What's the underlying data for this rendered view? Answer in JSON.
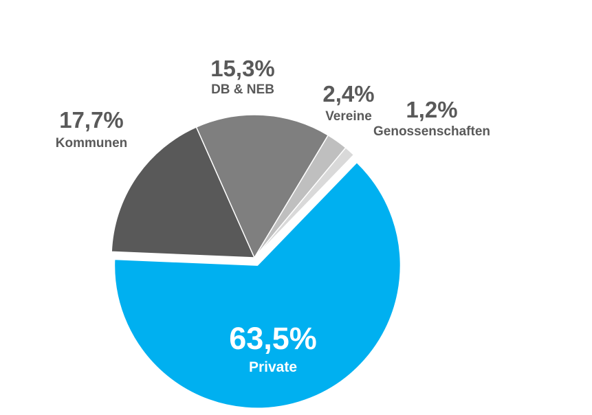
{
  "chart_data": {
    "type": "pie",
    "title": "",
    "slices": [
      {
        "label": "Private",
        "value": 63.5,
        "value_text": "63,5%",
        "color": "#00B0F0",
        "exploded": true
      },
      {
        "label": "Kommunen",
        "value": 17.7,
        "value_text": "17,7%",
        "color": "#595959",
        "exploded": false
      },
      {
        "label": "DB & NEB",
        "value": 15.3,
        "value_text": "15,3%",
        "color": "#7F7F7F",
        "exploded": false
      },
      {
        "label": "Vereine",
        "value": 2.4,
        "value_text": "2,4%",
        "color": "#BFBFBF",
        "exploded": false
      },
      {
        "label": "Genossenschaften",
        "value": 1.2,
        "value_text": "1,2%",
        "color": "#D9D9D9",
        "exploded": false
      }
    ],
    "legend": "none",
    "label_text_color": "#595959",
    "highlight_label_color": "#FFFFFF"
  }
}
